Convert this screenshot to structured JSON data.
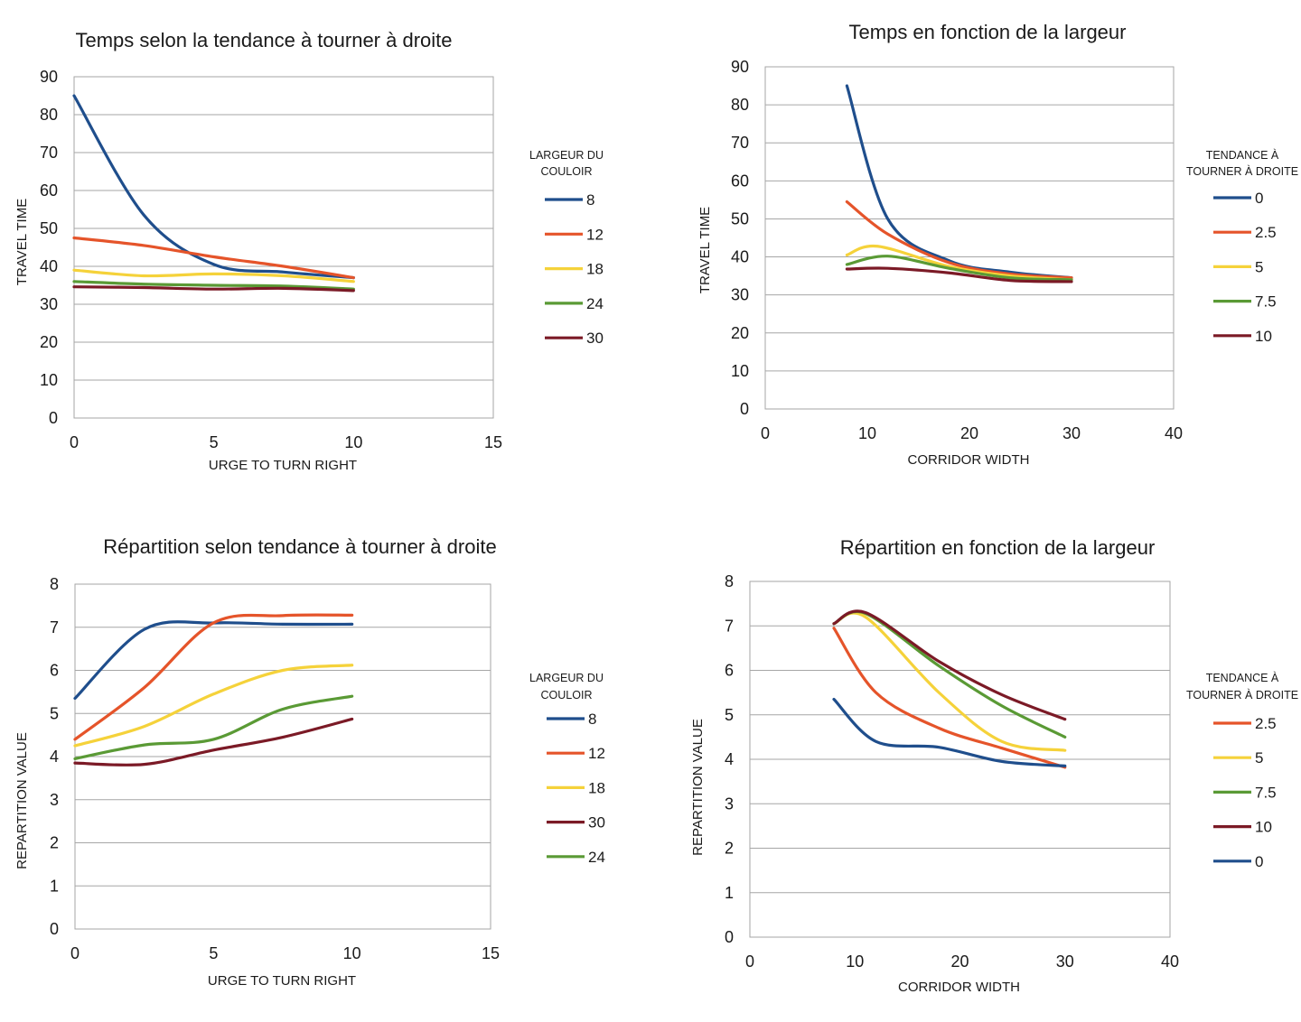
{
  "chart_data": [
    {
      "type": "line",
      "title": "Temps selon la tendance à tourner à droite",
      "xlabel": "URGE TO TURN RIGHT",
      "ylabel": "TRAVEL TIME",
      "xlim": [
        0,
        15
      ],
      "ylim": [
        0,
        90
      ],
      "xticks": [
        "0",
        "5",
        "10",
        "15"
      ],
      "yticks": [
        "0",
        "10",
        "20",
        "30",
        "40",
        "50",
        "60",
        "70",
        "80",
        "90"
      ],
      "grid": true,
      "legend_position": "right",
      "legend_title": [
        "LARGEUR DU",
        "COULOIR"
      ],
      "series": [
        {
          "name": "8",
          "color": "#1f4e8c",
          "points": [
            [
              0,
              85
            ],
            [
              2.5,
              53.5
            ],
            [
              5,
              40.5
            ],
            [
              7.5,
              38.5
            ],
            [
              10,
              37
            ]
          ]
        },
        {
          "name": "12",
          "color": "#e5542a",
          "points": [
            [
              0,
              47.5
            ],
            [
              2.5,
              45.5
            ],
            [
              5,
              42.5
            ],
            [
              7.5,
              40
            ],
            [
              10,
              37
            ]
          ]
        },
        {
          "name": "18",
          "color": "#f5d23a",
          "points": [
            [
              0,
              39
            ],
            [
              2.5,
              37.5
            ],
            [
              5,
              38
            ],
            [
              7.5,
              37.5
            ],
            [
              10,
              36
            ]
          ]
        },
        {
          "name": "24",
          "color": "#5a9a35",
          "points": [
            [
              0,
              36
            ],
            [
              2.5,
              35.3
            ],
            [
              5,
              35
            ],
            [
              7.5,
              34.8
            ],
            [
              10,
              34
            ]
          ]
        },
        {
          "name": "30",
          "color": "#7b1a26",
          "points": [
            [
              0,
              34.6
            ],
            [
              2.5,
              34.4
            ],
            [
              5,
              34
            ],
            [
              7.5,
              34.2
            ],
            [
              10,
              33.6
            ]
          ]
        }
      ]
    },
    {
      "type": "line",
      "title": "Temps en fonction de la largeur",
      "xlabel": "CORRIDOR WIDTH",
      "ylabel": "TRAVEL TIME",
      "xlim": [
        0,
        40
      ],
      "ylim": [
        0,
        90
      ],
      "xticks": [
        "0",
        "10",
        "20",
        "30",
        "40"
      ],
      "yticks": [
        "0",
        "10",
        "20",
        "30",
        "40",
        "50",
        "60",
        "70",
        "80",
        "90"
      ],
      "grid": true,
      "legend_position": "right",
      "legend_title": [
        "TENDANCE À",
        "TOURNER À DROITE"
      ],
      "series": [
        {
          "name": "0",
          "color": "#1f4e8c",
          "points": [
            [
              8,
              85
            ],
            [
              12,
              50
            ],
            [
              18,
              39
            ],
            [
              24,
              36
            ],
            [
              30,
              34.5
            ]
          ]
        },
        {
          "name": "2.5",
          "color": "#e5542a",
          "points": [
            [
              8,
              54.5
            ],
            [
              12,
              46
            ],
            [
              18,
              38.5
            ],
            [
              24,
              35.5
            ],
            [
              30,
              34.5
            ]
          ]
        },
        {
          "name": "5",
          "color": "#f5d23a",
          "points": [
            [
              8,
              40.5
            ],
            [
              11,
              42.8
            ],
            [
              18,
              37.5
            ],
            [
              24,
              35
            ],
            [
              30,
              34
            ]
          ]
        },
        {
          "name": "7.5",
          "color": "#5a9a35",
          "points": [
            [
              8,
              38
            ],
            [
              12,
              40.2
            ],
            [
              18,
              37
            ],
            [
              24,
              34.5
            ],
            [
              30,
              34
            ]
          ]
        },
        {
          "name": "10",
          "color": "#7b1a26",
          "points": [
            [
              8,
              36.8
            ],
            [
              12,
              37
            ],
            [
              18,
              35.8
            ],
            [
              24,
              33.8
            ],
            [
              30,
              33.5
            ]
          ]
        }
      ]
    },
    {
      "type": "line",
      "title": "Répartition   selon tendance à tourner à droite",
      "xlabel": "URGE TO TURN RIGHT",
      "ylabel": "REPARTITION  VALUE",
      "xlim": [
        0,
        15
      ],
      "ylim": [
        0,
        8
      ],
      "xticks": [
        "0",
        "5",
        "10",
        "15"
      ],
      "yticks": [
        "0",
        "1",
        "2",
        "3",
        "4",
        "5",
        "6",
        "7",
        "8"
      ],
      "grid": true,
      "legend_position": "right",
      "legend_title": [
        "LARGEUR DU",
        "COULOIR"
      ],
      "series": [
        {
          "name": "8",
          "color": "#1f4e8c",
          "points": [
            [
              0,
              5.35
            ],
            [
              2.5,
              6.95
            ],
            [
              5,
              7.1
            ],
            [
              7.5,
              7.07
            ],
            [
              10,
              7.07
            ]
          ]
        },
        {
          "name": "12",
          "color": "#e5542a",
          "points": [
            [
              0,
              4.4
            ],
            [
              2.5,
              5.6
            ],
            [
              5,
              7.1
            ],
            [
              7.5,
              7.27
            ],
            [
              10,
              7.28
            ]
          ]
        },
        {
          "name": "18",
          "color": "#f5d23a",
          "points": [
            [
              0,
              4.25
            ],
            [
              2.5,
              4.7
            ],
            [
              5,
              5.45
            ],
            [
              7.5,
              6.0
            ],
            [
              10,
              6.12
            ]
          ]
        },
        {
          "name": "30",
          "color": "#7b1a26",
          "points": [
            [
              0,
              3.85
            ],
            [
              2.5,
              3.82
            ],
            [
              5,
              4.15
            ],
            [
              7.5,
              4.45
            ],
            [
              10,
              4.87
            ]
          ]
        },
        {
          "name": "24",
          "color": "#5a9a35",
          "points": [
            [
              0,
              3.95
            ],
            [
              2.5,
              4.27
            ],
            [
              5,
              4.4
            ],
            [
              7.5,
              5.1
            ],
            [
              10,
              5.4
            ]
          ]
        }
      ]
    },
    {
      "type": "line",
      "title": "Répartition  en fonction de la largeur",
      "xlabel": "CORRIDOR WIDTH",
      "ylabel": "REPARTITION  VALUE",
      "xlim": [
        0,
        40
      ],
      "ylim": [
        0,
        8
      ],
      "xticks": [
        "0",
        "10",
        "20",
        "30",
        "40"
      ],
      "yticks": [
        "0",
        "1",
        "2",
        "3",
        "4",
        "5",
        "6",
        "7",
        "8"
      ],
      "grid": true,
      "legend_position": "right",
      "legend_title": [
        "TENDANCE À",
        "TOURNER À DROITE"
      ],
      "series": [
        {
          "name": "2.5",
          "color": "#e5542a",
          "points": [
            [
              8,
              6.95
            ],
            [
              12,
              5.5
            ],
            [
              18,
              4.7
            ],
            [
              24,
              4.25
            ],
            [
              30,
              3.82
            ]
          ]
        },
        {
          "name": "5",
          "color": "#f5d23a",
          "points": [
            [
              8,
              7.05
            ],
            [
              11,
              7.2
            ],
            [
              18,
              5.5
            ],
            [
              24,
              4.4
            ],
            [
              30,
              4.2
            ]
          ]
        },
        {
          "name": "7.5",
          "color": "#5a9a35",
          "points": [
            [
              8,
              7.05
            ],
            [
              11,
              7.28
            ],
            [
              18,
              6.1
            ],
            [
              24,
              5.2
            ],
            [
              30,
              4.5
            ]
          ]
        },
        {
          "name": "10",
          "color": "#7b1a26",
          "points": [
            [
              8,
              7.05
            ],
            [
              11,
              7.3
            ],
            [
              18,
              6.2
            ],
            [
              24,
              5.45
            ],
            [
              30,
              4.9
            ]
          ]
        },
        {
          "name": "0",
          "color": "#1f4e8c",
          "points": [
            [
              8,
              5.35
            ],
            [
              12,
              4.4
            ],
            [
              18,
              4.27
            ],
            [
              24,
              3.95
            ],
            [
              30,
              3.85
            ]
          ]
        }
      ]
    }
  ]
}
